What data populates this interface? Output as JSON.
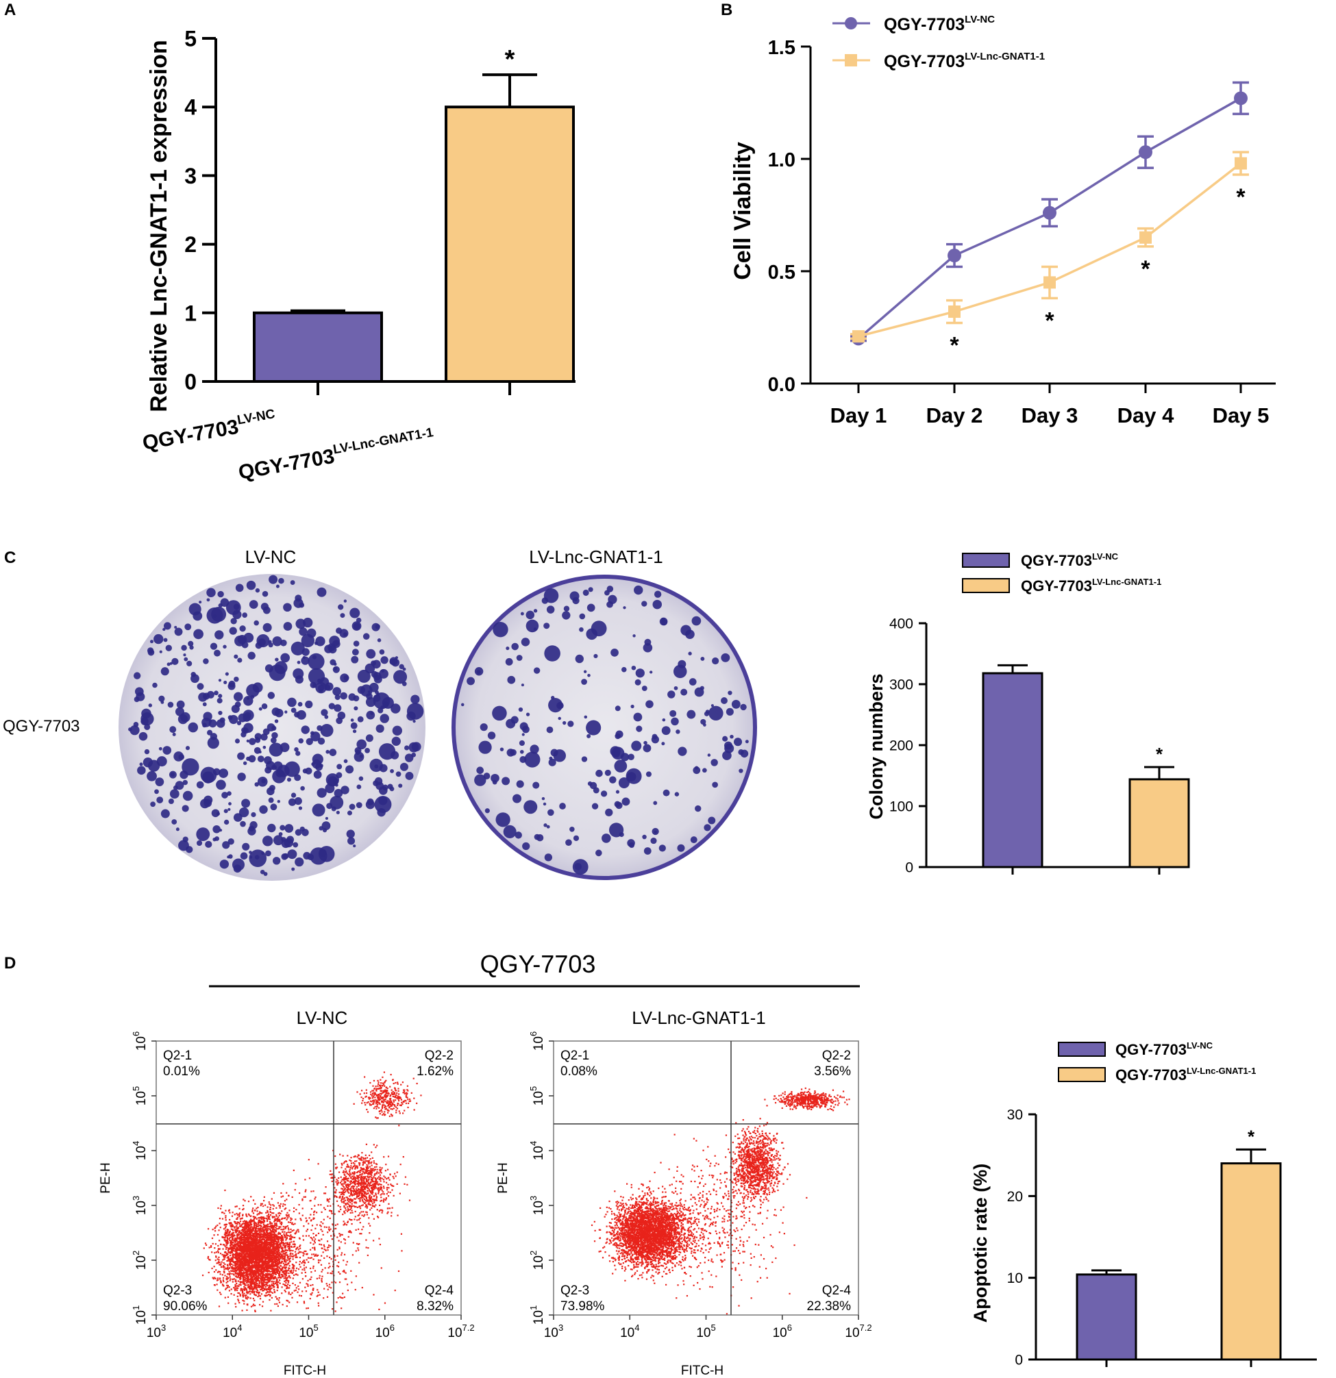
{
  "colors": {
    "nc": "#6f63ad",
    "lnc": "#f8cb86",
    "axis": "#000000",
    "dot": "#e8231b",
    "dish_bg": "#e4e3ea",
    "colony": "#2f2a86"
  },
  "panels": {
    "a": "A",
    "b": "B",
    "c": "C",
    "d": "D"
  },
  "chart_data": [
    {
      "id": "A",
      "type": "bar",
      "ylabel": "Relative Lnc-GNAT1-1 expression",
      "categories": [
        "QGY-7703",
        "QGY-7703"
      ],
      "sups": [
        "LV-NC",
        "LV-Lnc-GNAT1-1"
      ],
      "values": [
        1.0,
        4.0
      ],
      "errors": [
        0.03,
        0.47
      ],
      "significance": [
        "",
        "*"
      ],
      "ylim": [
        0,
        5
      ],
      "yticks": [
        "0",
        "1",
        "2",
        "3",
        "4",
        "5"
      ]
    },
    {
      "id": "B",
      "type": "line",
      "ylabel": "Cell Viability",
      "categories": [
        "Day 1",
        "Day 2",
        "Day 3",
        "Day 4",
        "Day 5"
      ],
      "series": [
        {
          "name": "QGY-7703",
          "sup": "LV-NC",
          "values": [
            0.2,
            0.57,
            0.76,
            1.03,
            1.27
          ],
          "errors": [
            0.01,
            0.05,
            0.06,
            0.07,
            0.07
          ]
        },
        {
          "name": "QGY-7703",
          "sup": "LV-Lnc-GNAT1-1",
          "values": [
            0.21,
            0.32,
            0.45,
            0.65,
            0.98
          ],
          "errors": [
            0.01,
            0.05,
            0.07,
            0.04,
            0.05
          ]
        }
      ],
      "significance": [
        "",
        "*",
        "*",
        "*",
        "*"
      ],
      "ylim": [
        0,
        1.5
      ],
      "yticks": [
        "0.0",
        "0.5",
        "1.0",
        "1.5"
      ]
    },
    {
      "id": "C",
      "type": "bar",
      "ylabel": "Colony numbers",
      "legend": [
        {
          "name": "QGY-7703",
          "sup": "LV-NC"
        },
        {
          "name": "QGY-7703",
          "sup": "LV-Lnc-GNAT1-1"
        }
      ],
      "values": [
        318,
        144
      ],
      "errors": [
        13,
        20
      ],
      "significance": [
        "",
        "*"
      ],
      "ylim": [
        0,
        400
      ],
      "yticks": [
        "0",
        "100",
        "200",
        "300",
        "400"
      ]
    },
    {
      "id": "D",
      "type": "bar",
      "ylabel": "Apoptotic rate (%)",
      "legend": [
        {
          "name": "QGY-7703",
          "sup": "LV-NC"
        },
        {
          "name": "QGY-7703",
          "sup": "LV-Lnc-GNAT1-1"
        }
      ],
      "values": [
        10.4,
        24.0
      ],
      "errors": [
        0.5,
        1.7
      ],
      "significance": [
        "",
        "*"
      ],
      "ylim": [
        0,
        30
      ],
      "yticks": [
        "0",
        "10",
        "20",
        "30"
      ]
    }
  ],
  "colony": {
    "col_labels": [
      "LV-NC",
      "LV-Lnc-GNAT1-1"
    ],
    "row_label": "QGY-7703"
  },
  "flow": {
    "group_title": "QGY-7703",
    "xlabel": "FITC-H",
    "ylabel": "PE-H",
    "xticks": [
      "10",
      "10",
      "10",
      "10",
      "10"
    ],
    "xexp": [
      "3",
      "4",
      "5",
      "6",
      "7.2"
    ],
    "yticks": [
      "10",
      "10",
      "10",
      "10",
      "10",
      "10"
    ],
    "yexp": [
      "1",
      "2",
      "3",
      "4",
      "5",
      "6"
    ],
    "plots": [
      {
        "title": "LV-NC",
        "quadrants": [
          {
            "name": "Q2-1",
            "value": "0.01%"
          },
          {
            "name": "Q2-2",
            "value": "1.62%"
          },
          {
            "name": "Q2-3",
            "value": "90.06%"
          },
          {
            "name": "Q2-4",
            "value": "8.32%"
          }
        ]
      },
      {
        "title": "LV-Lnc-GNAT1-1",
        "quadrants": [
          {
            "name": "Q2-1",
            "value": "0.08%"
          },
          {
            "name": "Q2-2",
            "value": "3.56%"
          },
          {
            "name": "Q2-3",
            "value": "73.98%"
          },
          {
            "name": "Q2-4",
            "value": "22.38%"
          }
        ]
      }
    ]
  }
}
